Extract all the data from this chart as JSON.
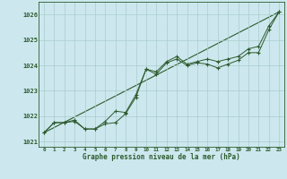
{
  "xlabel": "Graphe pression niveau de la mer (hPa)",
  "background_color": "#cce8ee",
  "grid_color": "#aacccc",
  "line_color": "#2d5a2d",
  "ylim": [
    1020.8,
    1026.5
  ],
  "xlim": [
    -0.5,
    23.5
  ],
  "yticks": [
    1021,
    1022,
    1023,
    1024,
    1025,
    1026
  ],
  "xticks": [
    0,
    1,
    2,
    3,
    4,
    5,
    6,
    7,
    8,
    9,
    10,
    11,
    12,
    13,
    14,
    15,
    16,
    17,
    18,
    19,
    20,
    21,
    22,
    23
  ],
  "series1_x": [
    0,
    1,
    2,
    3,
    4,
    5,
    6,
    7,
    8,
    9,
    10,
    11,
    12,
    13,
    14,
    15,
    16,
    17,
    18,
    19,
    20,
    21,
    22,
    23
  ],
  "series1_y": [
    1021.35,
    1021.75,
    1021.75,
    1021.8,
    1021.5,
    1021.5,
    1021.7,
    1021.75,
    1022.1,
    1022.75,
    1023.85,
    1023.65,
    1024.1,
    1024.25,
    1024.0,
    1024.1,
    1024.05,
    1023.9,
    1024.05,
    1024.2,
    1024.5,
    1024.5,
    1025.4,
    1026.1
  ],
  "series2_x": [
    0,
    1,
    2,
    3,
    4,
    5,
    6,
    7,
    8,
    9,
    10,
    11,
    12,
    13,
    14,
    15,
    16,
    17,
    18,
    19,
    20,
    21,
    22,
    23
  ],
  "series2_y": [
    1021.35,
    1021.75,
    1021.75,
    1021.85,
    1021.5,
    1021.5,
    1021.8,
    1022.2,
    1022.15,
    1022.85,
    1023.85,
    1023.75,
    1024.15,
    1024.35,
    1024.05,
    1024.15,
    1024.25,
    1024.15,
    1024.25,
    1024.35,
    1024.65,
    1024.75,
    1025.55,
    1026.1
  ],
  "trend_x": [
    0,
    23
  ],
  "trend_y": [
    1021.35,
    1026.1
  ],
  "marker_size": 2.5
}
